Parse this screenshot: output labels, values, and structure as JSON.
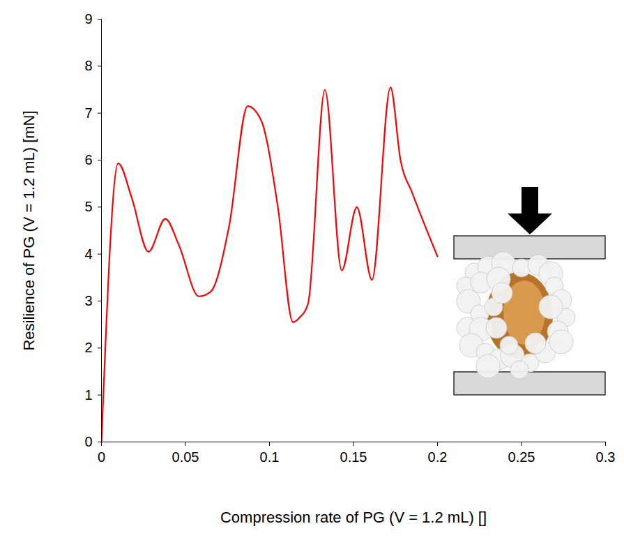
{
  "chart_data": {
    "type": "line",
    "x_label": "Compression rate of PG (V = 1.2 mL) []",
    "y_label": "Resilience of PG (V = 1.2 mL) [mN]",
    "x": [
      0,
      0.01,
      0.018,
      0.028,
      0.038,
      0.046,
      0.058,
      0.065,
      0.076,
      0.087,
      0.095,
      0.105,
      0.114,
      0.118,
      0.123,
      0.133,
      0.143,
      0.152,
      0.161,
      0.172,
      0.178,
      0.185,
      0.2
    ],
    "values": [
      0,
      5.93,
      5.2,
      4.05,
      4.75,
      4.2,
      3.1,
      3.2,
      4.6,
      7.15,
      6.85,
      5.0,
      2.55,
      2.65,
      2.95,
      7.5,
      3.65,
      5.0,
      3.45,
      7.55,
      6.0,
      5.3,
      3.95
    ],
    "color": "#ff0000",
    "xlim": [
      0,
      0.3
    ],
    "xticks": [
      0,
      0.05,
      0.1,
      0.15,
      0.2,
      0.25,
      0.3
    ],
    "ylim": [
      0,
      9
    ],
    "yticks": [
      0,
      1,
      2,
      3,
      4,
      5,
      6,
      7,
      8,
      9
    ],
    "grid": false
  }
}
